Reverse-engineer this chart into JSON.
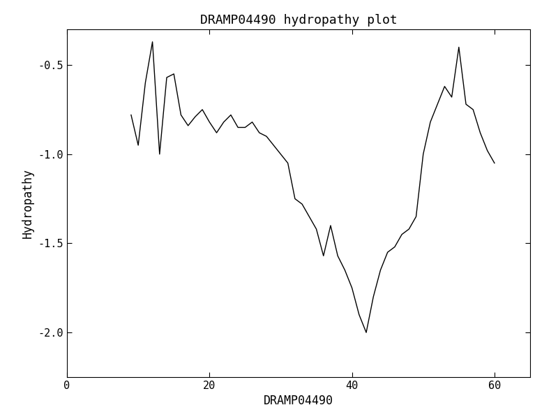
{
  "title": "DRAMP04490 hydropathy plot",
  "xlabel": "DRAMP04490",
  "ylabel": "Hydropathy",
  "xlim": [
    0,
    65
  ],
  "ylim": [
    -2.25,
    -0.3
  ],
  "xticks": [
    0,
    20,
    40,
    60
  ],
  "yticks": [
    -0.5,
    -1.0,
    -1.5,
    -2.0
  ],
  "line_color": "#000000",
  "line_width": 1.0,
  "background_color": "#ffffff",
  "title_fontsize": 13,
  "label_fontsize": 12,
  "tick_fontsize": 11,
  "x": [
    9,
    10,
    11,
    12,
    13,
    14,
    15,
    16,
    17,
    18,
    19,
    20,
    21,
    22,
    23,
    24,
    25,
    26,
    27,
    28,
    29,
    30,
    31,
    32,
    33,
    34,
    35,
    36,
    37,
    38,
    39,
    40,
    41,
    42,
    43,
    44,
    45,
    46,
    47,
    48,
    49,
    50,
    51,
    52,
    53,
    54,
    55,
    56,
    57,
    58,
    59,
    60
  ],
  "y": [
    -0.78,
    -0.95,
    -0.6,
    -0.37,
    -1.0,
    -0.57,
    -0.55,
    -0.78,
    -0.84,
    -0.79,
    -0.75,
    -0.82,
    -0.88,
    -0.82,
    -0.78,
    -0.85,
    -0.85,
    -0.82,
    -0.88,
    -0.9,
    -0.95,
    -1.0,
    -1.05,
    -1.25,
    -1.28,
    -1.35,
    -1.42,
    -1.57,
    -1.4,
    -1.57,
    -1.65,
    -1.75,
    -1.9,
    -2.0,
    -1.8,
    -1.65,
    -1.55,
    -1.52,
    -1.45,
    -1.42,
    -1.35,
    -1.0,
    -0.82,
    -0.72,
    -0.62,
    -0.68,
    -0.4,
    -0.72,
    -0.75,
    -0.88,
    -0.98,
    -1.05
  ]
}
